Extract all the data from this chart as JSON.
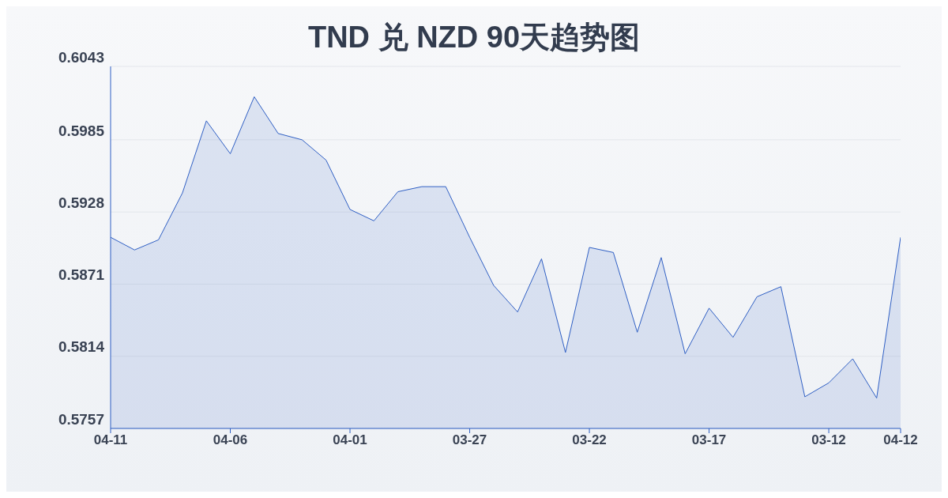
{
  "chart_data": {
    "type": "area",
    "title": "TND 兑 NZD 90天趋势图",
    "categories": [
      "04-11",
      null,
      null,
      null,
      null,
      "04-06",
      null,
      null,
      null,
      null,
      "04-01",
      null,
      null,
      null,
      null,
      "03-27",
      null,
      null,
      null,
      null,
      "03-22",
      null,
      null,
      null,
      null,
      "03-17",
      null,
      null,
      null,
      null,
      "03-12",
      null,
      null,
      "04-12"
    ],
    "series": [
      {
        "color": "#2f5fc4",
        "values": [
          0.5908,
          0.5898,
          0.5906,
          0.5943,
          0.6,
          0.5974,
          0.6019,
          0.599,
          0.5985,
          0.5969,
          0.593,
          0.5921,
          0.5944,
          0.5948,
          0.5948,
          0.5908,
          0.587,
          0.5849,
          0.5891,
          0.5817,
          0.59,
          0.5896,
          0.5833,
          0.5892,
          0.5816,
          0.5852,
          0.5829,
          0.5861,
          0.5869,
          0.5782,
          0.5793,
          0.5812,
          0.5781,
          0.5908
        ]
      }
    ],
    "ylim": [
      0.5757,
      0.6043
    ],
    "yticks": [
      0.5757,
      0.5814,
      0.5871,
      0.5928,
      0.5985,
      0.6043
    ],
    "grid": "y",
    "marker": "none",
    "legend": false
  }
}
